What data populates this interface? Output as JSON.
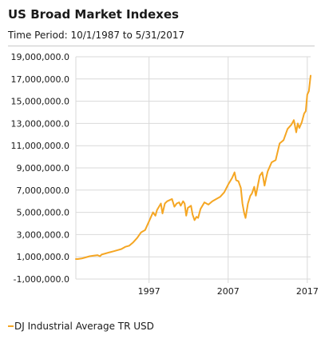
{
  "header": {
    "title": "US Broad Market Indexes",
    "subtitle": "Time Period: 10/1/1987 to 5/31/2017"
  },
  "colors": {
    "series": "#f5a623",
    "grid": "#d9d9d9",
    "axis": "#555555"
  },
  "chart_data": {
    "type": "line",
    "title": "US Broad Market Indexes",
    "subtitle": "Time Period: 10/1/1987 to 5/31/2017",
    "xlabel": "",
    "ylabel": "",
    "xlim": [
      1987.75,
      2017.42
    ],
    "ylim": [
      -1000000,
      19000000
    ],
    "y_ticks": [
      -1000000,
      1000000,
      3000000,
      5000000,
      7000000,
      9000000,
      11000000,
      13000000,
      15000000,
      17000000,
      19000000
    ],
    "y_tick_labels": [
      "-1,000,000.0",
      "1,000,000.0",
      "3,000,000.0",
      "5,000,000.0",
      "7,000,000.0",
      "9,000,000.0",
      "11,000,000.0",
      "13,000,000.0",
      "15,000,000.0",
      "17,000,000.0",
      "19,000,000.0"
    ],
    "x_ticks": [
      1997,
      2007,
      2017
    ],
    "x_tick_labels": [
      "1997",
      "2007",
      "2017"
    ],
    "grid": true,
    "legend_position": "bottom-left",
    "series": [
      {
        "name": "DJ Industrial Average TR USD",
        "color": "#f5a623",
        "x": [
          1987.75,
          1988.0,
          1988.5,
          1989.0,
          1989.5,
          1990.0,
          1990.5,
          1990.8,
          1991.0,
          1991.5,
          1992.0,
          1992.5,
          1993.0,
          1993.5,
          1994.0,
          1994.5,
          1995.0,
          1995.5,
          1996.0,
          1996.5,
          1997.0,
          1997.5,
          1997.8,
          1998.0,
          1998.5,
          1998.7,
          1999.0,
          1999.3,
          1999.6,
          1999.9,
          2000.2,
          2000.5,
          2000.8,
          2001.0,
          2001.3,
          2001.5,
          2001.7,
          2001.9,
          2002.3,
          2002.5,
          2002.75,
          2003.0,
          2003.2,
          2003.5,
          2004.0,
          2004.5,
          2005.0,
          2005.5,
          2006.0,
          2006.5,
          2007.0,
          2007.5,
          2007.8,
          2008.0,
          2008.3,
          2008.6,
          2008.8,
          2009.0,
          2009.2,
          2009.5,
          2009.8,
          2010.0,
          2010.3,
          2010.5,
          2010.8,
          2011.0,
          2011.3,
          2011.6,
          2011.8,
          2012.0,
          2012.5,
          2013.0,
          2013.5,
          2014.0,
          2014.5,
          2015.0,
          2015.3,
          2015.6,
          2015.8,
          2016.0,
          2016.3,
          2016.6,
          2016.8,
          2017.0,
          2017.2,
          2017.42
        ],
        "values": [
          800000,
          800000,
          850000,
          950000,
          1050000,
          1100000,
          1150000,
          1050000,
          1200000,
          1300000,
          1400000,
          1500000,
          1600000,
          1700000,
          1900000,
          2000000,
          2300000,
          2700000,
          3200000,
          3400000,
          4200000,
          5000000,
          4700000,
          5200000,
          5800000,
          4900000,
          5800000,
          6000000,
          6100000,
          6200000,
          5500000,
          5800000,
          5900000,
          5600000,
          6000000,
          5800000,
          4700000,
          5400000,
          5600000,
          4800000,
          4300000,
          4600000,
          4500000,
          5300000,
          5900000,
          5700000,
          6000000,
          6200000,
          6400000,
          6800000,
          7500000,
          8100000,
          8600000,
          7900000,
          7800000,
          7200000,
          5800000,
          5000000,
          4500000,
          5800000,
          6500000,
          6700000,
          7300000,
          6500000,
          7600000,
          8300000,
          8600000,
          7400000,
          8100000,
          8700000,
          9500000,
          9700000,
          11200000,
          11500000,
          12500000,
          12900000,
          13300000,
          12200000,
          13000000,
          12600000,
          13100000,
          13900000,
          14100000,
          15600000,
          15900000,
          17300000
        ]
      }
    ]
  },
  "legend": {
    "label": "DJ Industrial Average TR USD"
  }
}
